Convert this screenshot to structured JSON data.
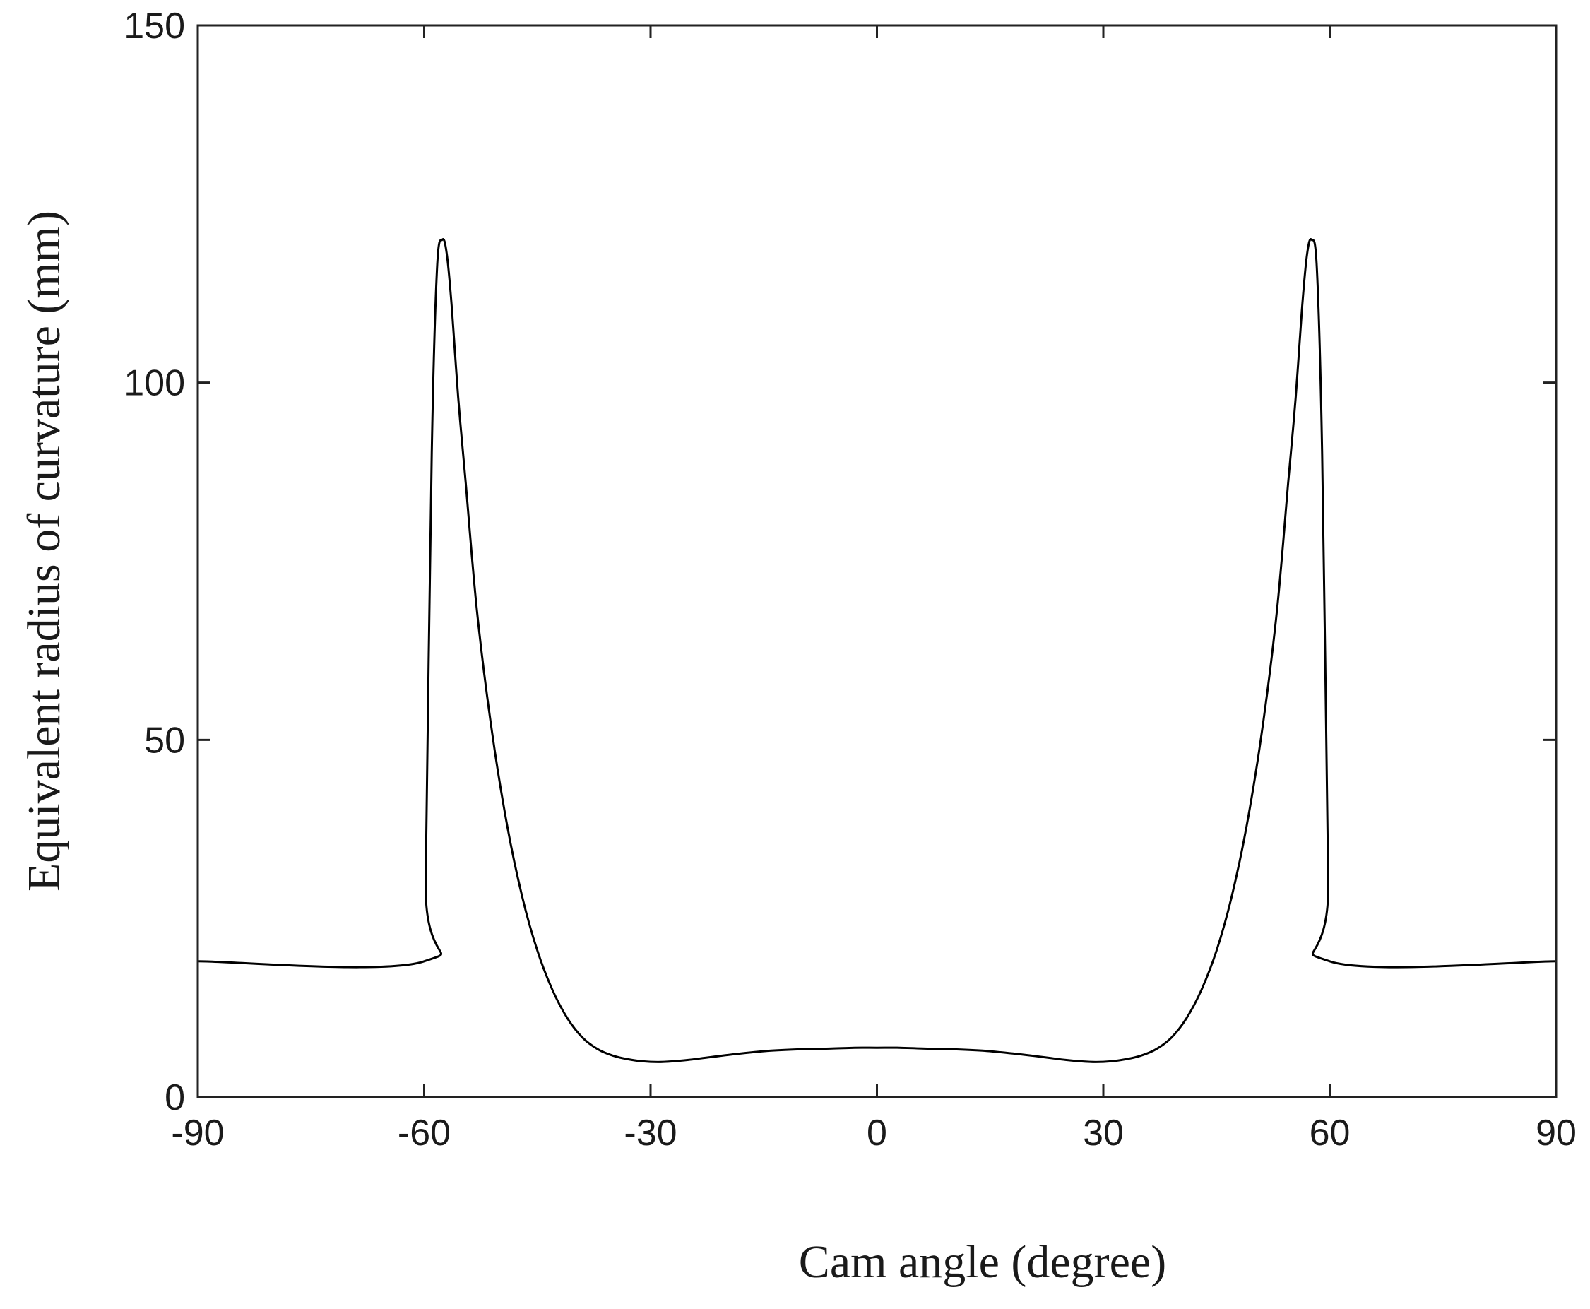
{
  "chart_data": {
    "type": "line",
    "title": "",
    "xlabel": "Cam angle (degree)",
    "ylabel": "Equivalent radius of curvature (mm)",
    "xlim": [
      -90,
      90
    ],
    "ylim": [
      0,
      150
    ],
    "xticks": [
      -90,
      -60,
      -30,
      0,
      30,
      60,
      90
    ],
    "yticks": [
      0,
      50,
      100,
      150
    ],
    "xtick_labels": [
      "-90",
      "-60",
      "-30",
      "0",
      "30",
      "60",
      "90"
    ],
    "ytick_labels": [
      "0",
      "50",
      "100",
      "150"
    ],
    "grid": false,
    "legend": "none",
    "line_color": "#000000",
    "series": [
      {
        "x": [
          -90,
          -60,
          -59.8,
          -59,
          -58.3,
          -57.6,
          -57,
          -56.3,
          -55.5,
          -54.5,
          -53,
          -51,
          -49,
          -47,
          -45,
          -43,
          -41,
          -39,
          -37,
          -35,
          -33,
          -31,
          -29,
          -27,
          -25,
          -22,
          -18,
          -14,
          -10,
          -6,
          -3,
          0,
          3,
          6,
          10,
          14,
          18,
          22,
          25,
          27,
          29,
          31,
          33,
          35,
          37,
          39,
          41,
          43,
          45,
          47,
          49,
          51,
          53,
          54.5,
          55.5,
          56.3,
          57,
          57.6,
          58.3,
          59,
          59.8,
          60,
          90
        ],
        "y": [
          19,
          19,
          30,
          90,
          116,
          120,
          118,
          110,
          98,
          86,
          68,
          51,
          38,
          28,
          20.5,
          15,
          11,
          8.3,
          6.7,
          5.8,
          5.3,
          5,
          4.9,
          5,
          5.2,
          5.6,
          6.1,
          6.5,
          6.7,
          6.8,
          6.9,
          6.9,
          6.9,
          6.8,
          6.7,
          6.5,
          6.1,
          5.6,
          5.2,
          5,
          4.9,
          5,
          5.3,
          5.8,
          6.7,
          8.3,
          11,
          15,
          20.5,
          28,
          38,
          51,
          68,
          86,
          98,
          110,
          118,
          120,
          116,
          90,
          30,
          19,
          19
        ]
      }
    ]
  }
}
